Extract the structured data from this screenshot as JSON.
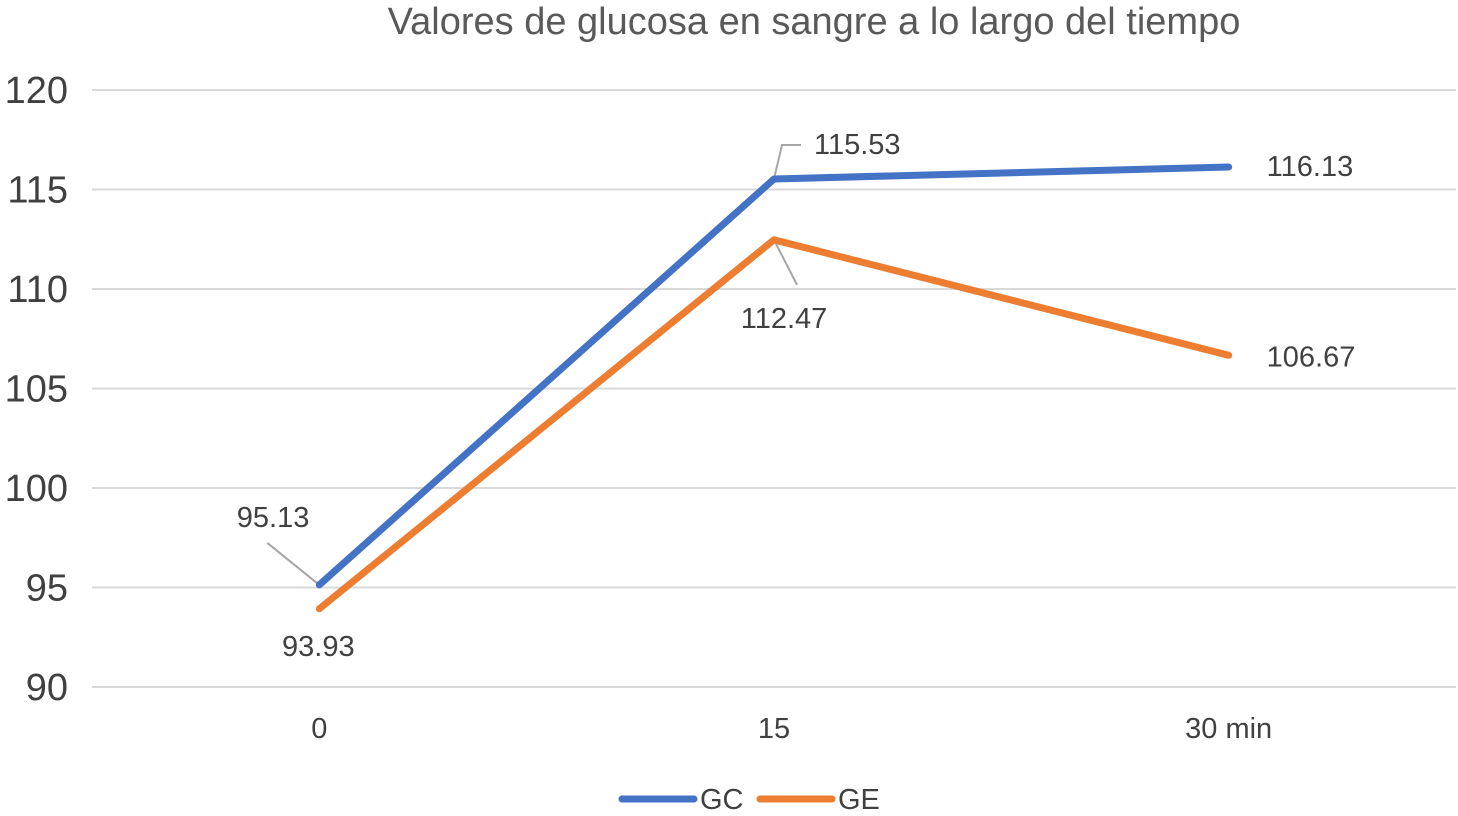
{
  "chart_data": {
    "type": "line",
    "title": "Valores de glucosa en sangre a lo largo del tiempo",
    "xlabel": "",
    "ylabel": "",
    "categories": [
      "0",
      "15",
      "30 min"
    ],
    "series": [
      {
        "name": "GC",
        "color": "#4472C4",
        "values": [
          95.13,
          115.53,
          116.13
        ],
        "labels": [
          "95.13",
          "115.53",
          "116.13"
        ]
      },
      {
        "name": "GE",
        "color": "#ED7D31",
        "values": [
          93.93,
          112.47,
          106.67
        ],
        "labels": [
          "93.93",
          "112.47",
          "106.67"
        ]
      }
    ],
    "ylim": [
      90,
      120
    ],
    "yticks": [
      90,
      95,
      100,
      105,
      110,
      115,
      120
    ],
    "grid": true,
    "legend": "bottom",
    "colors": {
      "grid": "#D9D9D9",
      "text": "#404040",
      "title": "#595959",
      "leader": "#A6A6A6"
    }
  }
}
